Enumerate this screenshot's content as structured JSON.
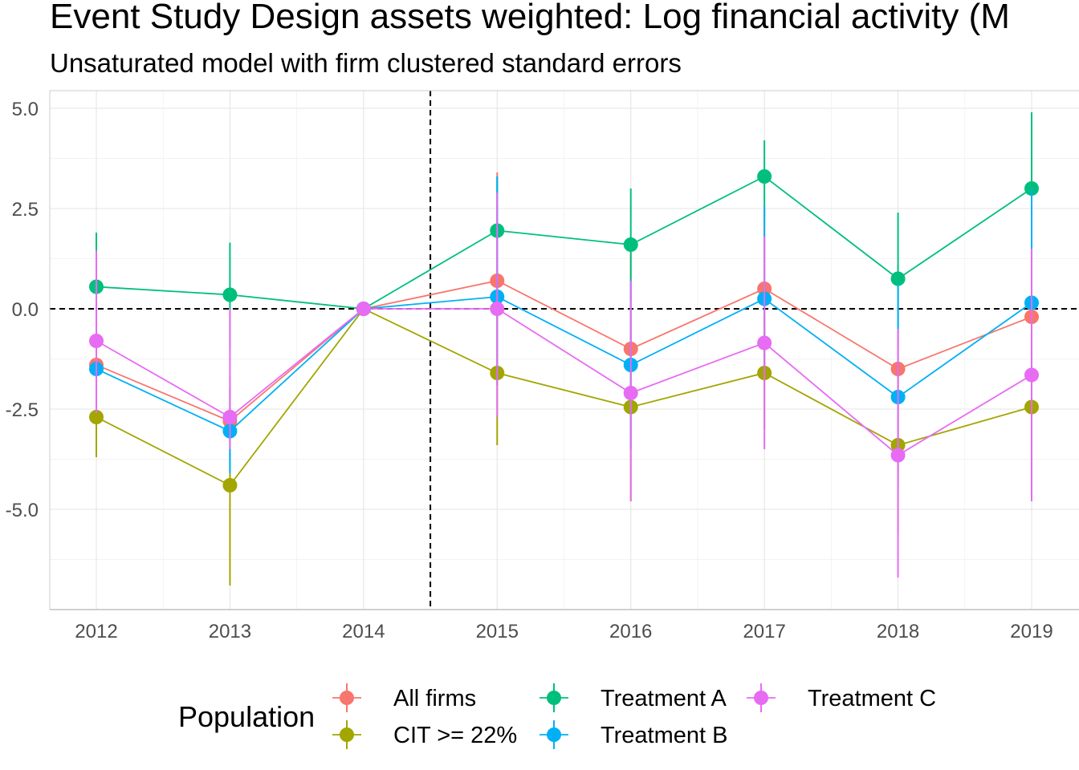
{
  "chart_data": {
    "type": "line",
    "title": "Event Study Design assets weighted: Log financial activity (M",
    "subtitle": "Unsaturated model with firm clustered standard errors",
    "xlabel": "",
    "ylabel": "",
    "x": [
      2012,
      2013,
      2014,
      2015,
      2016,
      2017,
      2018,
      2019
    ],
    "x_tick_labels": [
      "2012",
      "2013",
      "2014",
      "2015",
      "2016",
      "2017",
      "2018",
      "2019"
    ],
    "y_ticks": [
      5.0,
      2.5,
      0.0,
      -2.5,
      -5.0
    ],
    "y_tick_labels": [
      "5.0",
      "2.5",
      "0.0",
      "-2.5",
      "-5.0"
    ],
    "ylim": [
      -7.5,
      5.4
    ],
    "reference_lines": {
      "horizontal_y": 0,
      "vertical_x": 2014.5,
      "style": "dashed"
    },
    "grid": true,
    "legend": {
      "title": "Population",
      "position": "bottom"
    },
    "series": [
      {
        "name": "All firms",
        "color": "#F8766D",
        "values": [
          -1.4,
          -2.8,
          0.0,
          0.7,
          -1.0,
          0.5,
          -1.5,
          -0.2
        ],
        "lower": [
          -2.4,
          -3.9,
          0.0,
          -1.9,
          -3.4,
          -1.6,
          -4.1,
          -2.8
        ],
        "upper": [
          -0.4,
          -1.7,
          0.0,
          3.4,
          1.4,
          2.5,
          1.1,
          2.3
        ]
      },
      {
        "name": "CIT >= 22%",
        "color": "#A3A500",
        "values": [
          -2.7,
          -4.4,
          0.0,
          -1.6,
          -2.45,
          -1.6,
          -3.4,
          -2.45
        ],
        "lower": [
          -3.7,
          -6.9,
          0.0,
          -3.4,
          -4.8,
          -3.0,
          -5.6,
          -4.3
        ],
        "upper": [
          -1.6,
          -2.0,
          0.0,
          0.2,
          -0.3,
          -0.2,
          -1.3,
          -0.6
        ]
      },
      {
        "name": "Treatment A",
        "color": "#00BF7D",
        "values": [
          0.55,
          0.35,
          0.0,
          1.95,
          1.6,
          3.3,
          0.75,
          3.0
        ],
        "lower": [
          -0.8,
          -1.0,
          0.0,
          0.5,
          0.2,
          2.3,
          -1.0,
          1.2
        ],
        "upper": [
          1.9,
          1.65,
          0.0,
          3.3,
          3.0,
          4.2,
          2.4,
          4.9
        ]
      },
      {
        "name": "Treatment B",
        "color": "#00B0F6",
        "values": [
          -1.5,
          -3.05,
          0.0,
          0.3,
          -1.4,
          0.25,
          -2.2,
          0.15
        ],
        "lower": [
          -2.4,
          -4.1,
          0.0,
          -1.9,
          -3.5,
          -1.6,
          -4.5,
          -1.9
        ],
        "upper": [
          -0.5,
          -2.0,
          0.0,
          3.3,
          0.7,
          2.6,
          0.6,
          3.0
        ]
      },
      {
        "name": "Treatment C",
        "color": "#E76BF3",
        "values": [
          -0.8,
          -2.7,
          0.0,
          0.0,
          -2.1,
          -0.85,
          -3.65,
          -1.65
        ],
        "lower": [
          -2.6,
          -3.5,
          0.0,
          -2.7,
          -4.8,
          -3.5,
          -6.7,
          -4.8
        ],
        "upper": [
          1.45,
          0.0,
          0.0,
          2.9,
          0.7,
          1.8,
          -0.5,
          1.5
        ]
      }
    ]
  }
}
